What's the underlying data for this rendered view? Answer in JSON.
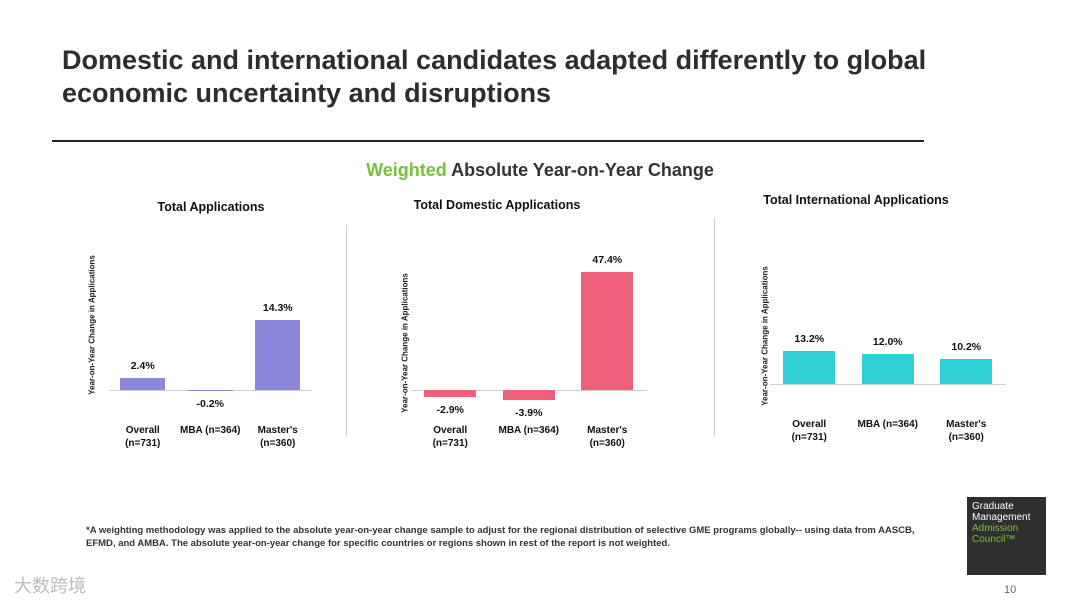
{
  "title": "Domestic and international candidates adapted differently to global economic uncertainty and disruptions",
  "subtitle": {
    "highlight": "Weighted",
    "rest": "Absolute Year-on-Year Change"
  },
  "chart_data": [
    {
      "type": "bar",
      "title": "Total Applications",
      "y_label": "Year-on-Year Change in Applications",
      "categories": [
        "Overall (n=731)",
        "MBA (n=364)",
        "Master's (n=360)"
      ],
      "values": [
        2.4,
        -0.2,
        14.3
      ],
      "value_labels": [
        "2.4%",
        "-0.2%",
        "14.3%"
      ],
      "color": "#8b86d9",
      "ylim": [
        -11.2,
        31.6
      ]
    },
    {
      "type": "bar",
      "title": "Total Domestic Applications",
      "y_label": "Year-on-Year Change in Applications",
      "categories": [
        "Overall (n=731)",
        "MBA (n=364)",
        "Master's (n=360)"
      ],
      "values": [
        -2.9,
        -3.9,
        47.4
      ],
      "value_labels": [
        "-2.9%",
        "-3.9%",
        "47.4%"
      ],
      "color": "#ee5f7a",
      "ylim": [
        -22,
        62
      ]
    },
    {
      "type": "bar",
      "title": "Total International Applications",
      "y_label": "Year-on-Year Change in Applications",
      "categories": [
        "Overall (n=731)",
        "MBA (n=364)",
        "Master's (n=360)"
      ],
      "values": [
        13.2,
        12.0,
        10.2
      ],
      "value_labels": [
        "13.2%",
        "12.0%",
        "10.2%"
      ],
      "color": "#2ecfd5",
      "ylim": [
        -24.4,
        59.6
      ]
    }
  ],
  "footnote": "*A weighting methodology was applied to the absolute year-on-year change sample to adjust for the regional distribution of selective GME programs globally-- using data from AASCB, EFMD, and AMBA. The absolute year-on-year change for specific countries or regions shown in rest of the report is not weighted.",
  "logo": {
    "lines": [
      "Graduate",
      "Management",
      "Admission",
      "Council™"
    ]
  },
  "page_number": "10",
  "watermark": "大数跨境"
}
